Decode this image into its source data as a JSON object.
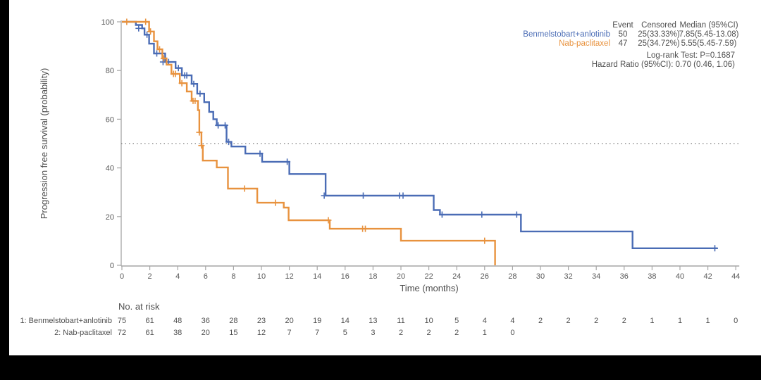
{
  "colors": {
    "group1": "#4a6cb5",
    "group2": "#e8923e",
    "axis_line": "#a6a6a6",
    "tick_text": "#595959",
    "text": "#4d4d4d",
    "median_ref_line": "#7a7a7a",
    "frame_background": "#000000",
    "plot_background": "#ffffff"
  },
  "legend": {
    "headers": {
      "event": "Event",
      "censored": "Censored",
      "median": "Median (95%CI)"
    },
    "rows": [
      {
        "label": "Benmelstobart+anlotinib",
        "event": "50",
        "censored": "25(33.33%)",
        "median": "7.85(5.45-13.08)"
      },
      {
        "label": "Nab-paclitaxel",
        "event": "47",
        "censored": "25(34.72%)",
        "median": "5.55(5.45-7.59)"
      }
    ],
    "logrank": "Log-rank Test: P=0.1687",
    "hazard": "Hazard Ratio (95%CI): 0.70 (0.46, 1.06)"
  },
  "risk_table": {
    "title": "No. at risk",
    "rows": [
      {
        "label": "1: Benmelstobart+anlotinib",
        "counts": [
          75,
          61,
          48,
          36,
          28,
          23,
          20,
          19,
          14,
          13,
          11,
          10,
          5,
          4,
          4,
          2,
          2,
          2,
          2,
          1,
          1,
          1,
          0
        ]
      },
      {
        "label": "2: Nab-paclitaxel",
        "counts": [
          72,
          61,
          38,
          20,
          15,
          12,
          7,
          7,
          5,
          3,
          2,
          2,
          2,
          1,
          0
        ]
      }
    ]
  },
  "chart_data": {
    "type": "line",
    "subtype": "kaplan-meier-step",
    "title": "",
    "xlabel": "Time (months)",
    "ylabel": "Progression free survival (probability)",
    "xlim": [
      0,
      44
    ],
    "ylim": [
      0,
      100
    ],
    "xticks": [
      0,
      2,
      4,
      6,
      8,
      10,
      12,
      14,
      16,
      18,
      20,
      22,
      24,
      26,
      28,
      30,
      32,
      34,
      36,
      38,
      40,
      42,
      44
    ],
    "yticks": [
      0,
      20,
      40,
      60,
      80,
      100
    ],
    "grid": false,
    "median_reference_line_y": 50,
    "legend_position": "top-right",
    "series": [
      {
        "name": "Benmelstobart+anlotinib",
        "color": "#4a6cb5",
        "n": 75,
        "events": 50,
        "censored_pct": "25(33.33%)",
        "median_ci": "7.85(5.45-13.08)",
        "points": [
          [
            0,
            100
          ],
          [
            1.0,
            98.7
          ],
          [
            1.45,
            97.3
          ],
          [
            1.62,
            94.7
          ],
          [
            1.95,
            91
          ],
          [
            2.3,
            87
          ],
          [
            3.1,
            83.5
          ],
          [
            3.85,
            81
          ],
          [
            4.3,
            78
          ],
          [
            5.0,
            74.5
          ],
          [
            5.4,
            70.5
          ],
          [
            5.9,
            67
          ],
          [
            6.25,
            63
          ],
          [
            6.55,
            60
          ],
          [
            6.8,
            57.5
          ],
          [
            7.5,
            50.7
          ],
          [
            7.85,
            48.8
          ],
          [
            8.85,
            45.9
          ],
          [
            10.05,
            42.5
          ],
          [
            12.0,
            37.5
          ],
          [
            14.6,
            28.6
          ],
          [
            22.35,
            22.7
          ],
          [
            22.8,
            20.8
          ],
          [
            28.6,
            13.9
          ],
          [
            36.6,
            7.0
          ],
          [
            42.7,
            7.0
          ]
        ],
        "censors": [
          [
            1.2,
            97.3
          ],
          [
            1.8,
            94.7
          ],
          [
            2.5,
            87
          ],
          [
            2.95,
            83.5
          ],
          [
            3.35,
            83.5
          ],
          [
            4.05,
            81
          ],
          [
            4.5,
            78
          ],
          [
            4.65,
            78
          ],
          [
            5.15,
            74.5
          ],
          [
            5.6,
            70.5
          ],
          [
            6.9,
            57.5
          ],
          [
            7.4,
            57.5
          ],
          [
            7.65,
            50.7
          ],
          [
            9.9,
            45.9
          ],
          [
            11.85,
            42.5
          ],
          [
            14.5,
            28.6
          ],
          [
            17.3,
            28.6
          ],
          [
            19.9,
            28.6
          ],
          [
            20.15,
            28.6
          ],
          [
            22.95,
            20.8
          ],
          [
            25.8,
            20.8
          ],
          [
            28.3,
            20.8
          ],
          [
            42.5,
            7.0
          ]
        ]
      },
      {
        "name": "Nab-paclitaxel",
        "color": "#e8923e",
        "n": 72,
        "events": 47,
        "censored_pct": "25(34.72%)",
        "median_ci": "5.55(5.45-7.59)",
        "points": [
          [
            0,
            100
          ],
          [
            1.95,
            96
          ],
          [
            2.3,
            92
          ],
          [
            2.55,
            88.7
          ],
          [
            2.9,
            85
          ],
          [
            3.2,
            82.4
          ],
          [
            3.55,
            78.6
          ],
          [
            4.15,
            74.8
          ],
          [
            4.65,
            71.4
          ],
          [
            5.0,
            67.5
          ],
          [
            5.45,
            63.7
          ],
          [
            5.55,
            54.6
          ],
          [
            5.7,
            49.2
          ],
          [
            5.8,
            43
          ],
          [
            6.8,
            40.2
          ],
          [
            7.6,
            31.5
          ],
          [
            9.7,
            25.7
          ],
          [
            11.6,
            23.7
          ],
          [
            11.95,
            18.5
          ],
          [
            14.9,
            15.0
          ],
          [
            20.0,
            10.1
          ],
          [
            26.75,
            0
          ]
        ],
        "censors": [
          [
            0.35,
            100
          ],
          [
            1.7,
            100
          ],
          [
            2.05,
            96
          ],
          [
            2.7,
            88.7
          ],
          [
            3.0,
            85
          ],
          [
            3.7,
            78.6
          ],
          [
            3.85,
            78.6
          ],
          [
            4.3,
            74.8
          ],
          [
            5.1,
            67.5
          ],
          [
            5.25,
            67.5
          ],
          [
            5.55,
            54.6
          ],
          [
            5.7,
            49.2
          ],
          [
            8.8,
            31.5
          ],
          [
            11.0,
            25.7
          ],
          [
            14.8,
            18.5
          ],
          [
            17.25,
            15
          ],
          [
            17.45,
            15
          ],
          [
            26.0,
            10.1
          ]
        ]
      }
    ],
    "annotations": [
      "Log-rank Test: P=0.1687",
      "Hazard Ratio (95%CI): 0.70 (0.46, 1.06)"
    ]
  }
}
